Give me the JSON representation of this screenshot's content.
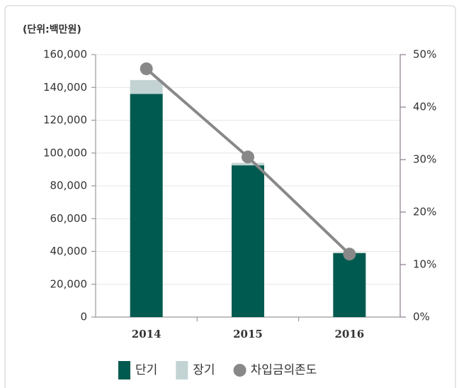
{
  "chart_data": {
    "type": "bar",
    "stacked": true,
    "subtitle": "(단위:백만원)",
    "categories": [
      "2014",
      "2015",
      "2016"
    ],
    "series": [
      {
        "name": "단기",
        "color": "#005a50",
        "values": [
          136000,
          92500,
          39000
        ]
      },
      {
        "name": "장기",
        "color": "#c3d3d3",
        "values": [
          8500,
          1500,
          500
        ]
      },
      {
        "name": "차입금의존도",
        "type": "line",
        "axis": "y2",
        "color": "#888888",
        "values": [
          47.3,
          30.5,
          12.0
        ]
      }
    ],
    "ylim": [
      0,
      160000
    ],
    "yticks": [
      0,
      {
        "value": 20000,
        "label": "20,000"
      },
      {
        "value": 40000,
        "label": "40,000"
      },
      {
        "value": 60000,
        "label": "60,000"
      },
      {
        "value": 80000,
        "label": "80,000"
      },
      {
        "value": 100000,
        "label": "100,000"
      },
      {
        "value": 120000,
        "label": "120,000"
      },
      {
        "value": 140000,
        "label": "140,000"
      },
      {
        "value": 160000,
        "label": "160,000"
      }
    ],
    "y2lim": [
      0,
      50
    ],
    "y2ticks": [
      {
        "value": 0,
        "label": "0%"
      },
      {
        "value": 10,
        "label": "10%"
      },
      {
        "value": 20,
        "label": "20%"
      },
      {
        "value": 30,
        "label": "30%"
      },
      {
        "value": 40,
        "label": "40%"
      },
      {
        "value": 50,
        "label": "50%"
      }
    ],
    "grid": true,
    "legend": "bottom"
  }
}
